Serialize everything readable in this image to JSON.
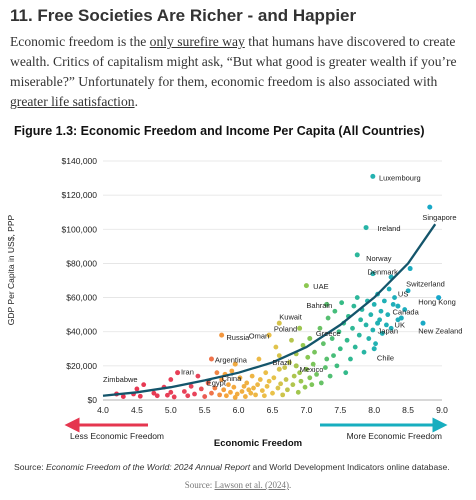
{
  "section_title": "11. Free Societies Are Richer - and Happier",
  "intro": {
    "part1": "Economic freedom is the ",
    "link1": "only surefire way",
    "part2": " that humans have discovered to create wealth. Critics of capitalism might ask, “But what good is greater wealth if you’re miserable?” Unfortunately for them, economic freedom is also associated with ",
    "link2": "greater life satisfaction",
    "part3": "."
  },
  "source": {
    "prefix": "Source: ",
    "title": "Economic Freedom of the World: 2024 Annual Report",
    "suffix": " and World Development Indicators online database."
  },
  "credit": {
    "prefix": "Source: ",
    "link": "Lawson et al. (2024)",
    "suffix": "."
  },
  "chart_data": {
    "type": "scatter",
    "title": "Figure 1.3: Economic Freedom and Income Per Capita (All Countries)",
    "xlabel": "Economic Freedom",
    "ylabel": "GDP Per Capita in US$, PPP",
    "xlim": [
      4.0,
      9.0
    ],
    "ylim": [
      0,
      140000
    ],
    "x_ticks": [
      "4.0",
      "4.5",
      "5.0",
      "5.5",
      "6.0",
      "6.5",
      "7.0",
      "7.5",
      "8.0",
      "8.5",
      "9.0"
    ],
    "y_ticks": [
      "$0",
      "$20,000",
      "$40,000",
      "$60,000",
      "$80,000",
      "$100,000",
      "$120,000",
      "$140,000"
    ],
    "grid": "horizontal",
    "legend": "none",
    "arrow_left_label": "Less Economic Freedom",
    "arrow_right_label": "More Economic Freedom",
    "colors": {
      "left_arrow": "#e5364f",
      "right_arrow": "#17aebf",
      "trend": "#14556b",
      "grid": "#e2e2e2"
    },
    "gradient_stops": [
      {
        "x": 4.0,
        "color": "#e6304e"
      },
      {
        "x": 5.4,
        "color": "#e8445a"
      },
      {
        "x": 5.8,
        "color": "#f5a33c"
      },
      {
        "x": 6.5,
        "color": "#e9c24a"
      },
      {
        "x": 7.0,
        "color": "#8cc751"
      },
      {
        "x": 7.5,
        "color": "#37bb83"
      },
      {
        "x": 8.0,
        "color": "#22b2b2"
      },
      {
        "x": 9.0,
        "color": "#16a6cc"
      }
    ],
    "trend_curve": [
      [
        4.0,
        2500
      ],
      [
        4.5,
        4500
      ],
      [
        5.0,
        7500
      ],
      [
        5.5,
        11500
      ],
      [
        6.0,
        16000
      ],
      [
        6.5,
        22000
      ],
      [
        7.0,
        31000
      ],
      [
        7.5,
        44000
      ],
      [
        8.0,
        60000
      ],
      [
        8.5,
        80000
      ],
      [
        8.9,
        103000
      ]
    ],
    "labeled_points": [
      {
        "name": "Zimbabwe",
        "x": 4.2,
        "y": 3500,
        "lx": 4.0,
        "ly": 12000
      },
      {
        "name": "Iran",
        "x": 5.1,
        "y": 16000,
        "lx": 5.15,
        "ly": 16500
      },
      {
        "name": "Argentina",
        "x": 5.6,
        "y": 24000,
        "lx": 5.65,
        "ly": 23500
      },
      {
        "name": "China",
        "x": 5.95,
        "y": 21000,
        "lx": 5.75,
        "ly": 12500
      },
      {
        "name": "Egypt",
        "x": 5.8,
        "y": 15000,
        "lx": 5.53,
        "ly": 10000
      },
      {
        "name": "Russia",
        "x": 5.75,
        "y": 38000,
        "lx": 5.82,
        "ly": 36500
      },
      {
        "name": "Oman",
        "x": 6.45,
        "y": 38000,
        "lx": 6.15,
        "ly": 37500
      },
      {
        "name": "Brazil",
        "x": 6.6,
        "y": 18000,
        "lx": 6.5,
        "ly": 22000
      },
      {
        "name": "Mexico",
        "x": 6.85,
        "y": 20000,
        "lx": 6.9,
        "ly": 18000
      },
      {
        "name": "Poland",
        "x": 6.9,
        "y": 42000,
        "lx": 6.52,
        "ly": 41500
      },
      {
        "name": "Kuwait",
        "x": 6.6,
        "y": 45000,
        "lx": 6.6,
        "ly": 48500
      },
      {
        "name": "UAE",
        "x": 7.0,
        "y": 67000,
        "lx": 7.1,
        "ly": 66500
      },
      {
        "name": "Bahrain",
        "x": 7.3,
        "y": 56000,
        "lx": 7.0,
        "ly": 55500
      },
      {
        "name": "Greece",
        "x": 7.05,
        "y": 36000,
        "lx": 7.14,
        "ly": 39000
      },
      {
        "name": "Chile",
        "x": 8.0,
        "y": 30000,
        "lx": 8.04,
        "ly": 24500
      },
      {
        "name": "Japan",
        "x": 8.05,
        "y": 45000,
        "lx": 8.05,
        "ly": 40500
      },
      {
        "name": "Luxembourg",
        "x": 7.98,
        "y": 131000,
        "lx": 8.07,
        "ly": 130000
      },
      {
        "name": "Singapore",
        "x": 8.82,
        "y": 113000,
        "lx": 8.71,
        "ly": 107000
      },
      {
        "name": "Ireland",
        "x": 7.88,
        "y": 101000,
        "lx": 8.05,
        "ly": 100500
      },
      {
        "name": "Norway",
        "x": 7.75,
        "y": 85000,
        "lx": 7.88,
        "ly": 83000
      },
      {
        "name": "Denmark",
        "x": 7.98,
        "y": 74000,
        "lx": 7.9,
        "ly": 75000
      },
      {
        "name": "Switzerland",
        "x": 8.53,
        "y": 77000,
        "lx": 8.47,
        "ly": 68000
      },
      {
        "name": "US",
        "x": 8.25,
        "y": 72000,
        "lx": 8.35,
        "ly": 62000
      },
      {
        "name": "Hong Kong",
        "x": 8.95,
        "y": 60000,
        "lx": 8.65,
        "ly": 57500
      },
      {
        "name": "Canada",
        "x": 8.35,
        "y": 55000,
        "lx": 8.27,
        "ly": 51500
      },
      {
        "name": "UK",
        "x": 8.4,
        "y": 48000,
        "lx": 8.3,
        "ly": 44000
      },
      {
        "name": "New Zealand",
        "x": 8.72,
        "y": 45000,
        "lx": 8.65,
        "ly": 40500
      }
    ],
    "other_points": [
      [
        4.3,
        2000
      ],
      [
        4.45,
        3500
      ],
      [
        4.5,
        6500
      ],
      [
        4.55,
        2200
      ],
      [
        4.6,
        9000
      ],
      [
        4.75,
        4000
      ],
      [
        4.8,
        2500
      ],
      [
        4.9,
        7500
      ],
      [
        4.95,
        2800
      ],
      [
        5.0,
        4500
      ],
      [
        5.0,
        12000
      ],
      [
        5.05,
        1800
      ],
      [
        5.2,
        5000
      ],
      [
        5.25,
        2500
      ],
      [
        5.3,
        8000
      ],
      [
        5.35,
        3500
      ],
      [
        5.4,
        14000
      ],
      [
        5.45,
        6500
      ],
      [
        5.5,
        2000
      ],
      [
        5.55,
        10000
      ],
      [
        5.6,
        4000
      ],
      [
        5.65,
        7000
      ],
      [
        5.68,
        16000
      ],
      [
        5.72,
        3000
      ],
      [
        5.75,
        12000
      ],
      [
        5.78,
        6000
      ],
      [
        5.82,
        2500
      ],
      [
        5.85,
        9000
      ],
      [
        5.88,
        4500
      ],
      [
        5.9,
        17000
      ],
      [
        5.93,
        7500
      ],
      [
        5.95,
        1500
      ],
      [
        5.98,
        3500
      ],
      [
        6.02,
        13000
      ],
      [
        6.05,
        5000
      ],
      [
        6.08,
        8000
      ],
      [
        6.1,
        2000
      ],
      [
        6.12,
        10000
      ],
      [
        6.15,
        6000
      ],
      [
        6.18,
        4000
      ],
      [
        6.2,
        14000
      ],
      [
        6.22,
        7000
      ],
      [
        6.25,
        3000
      ],
      [
        6.28,
        9000
      ],
      [
        6.3,
        24000
      ],
      [
        6.32,
        12000
      ],
      [
        6.35,
        5500
      ],
      [
        6.38,
        2500
      ],
      [
        6.4,
        16000
      ],
      [
        6.42,
        8000
      ],
      [
        6.45,
        11000
      ],
      [
        6.5,
        4000
      ],
      [
        6.52,
        13000
      ],
      [
        6.55,
        31000
      ],
      [
        6.58,
        7000
      ],
      [
        6.6,
        26000
      ],
      [
        6.62,
        9500
      ],
      [
        6.65,
        3000
      ],
      [
        6.68,
        19000
      ],
      [
        6.7,
        12000
      ],
      [
        6.72,
        6000
      ],
      [
        6.75,
        22000
      ],
      [
        6.78,
        35000
      ],
      [
        6.8,
        9000
      ],
      [
        6.82,
        14000
      ],
      [
        6.85,
        27000
      ],
      [
        6.88,
        4500
      ],
      [
        6.9,
        16000
      ],
      [
        6.92,
        11000
      ],
      [
        6.95,
        32000
      ],
      [
        6.98,
        7500
      ],
      [
        7.0,
        18000
      ],
      [
        7.02,
        25000
      ],
      [
        7.05,
        13000
      ],
      [
        7.08,
        9000
      ],
      [
        7.1,
        21000
      ],
      [
        7.12,
        28000
      ],
      [
        7.15,
        15000
      ],
      [
        7.2,
        42000
      ],
      [
        7.22,
        10000
      ],
      [
        7.25,
        33000
      ],
      [
        7.28,
        19000
      ],
      [
        7.3,
        24000
      ],
      [
        7.32,
        48000
      ],
      [
        7.35,
        14000
      ],
      [
        7.38,
        36000
      ],
      [
        7.4,
        26000
      ],
      [
        7.42,
        52000
      ],
      [
        7.45,
        20000
      ],
      [
        7.48,
        40000
      ],
      [
        7.5,
        30000
      ],
      [
        7.52,
        57000
      ],
      [
        7.55,
        45000
      ],
      [
        7.58,
        16000
      ],
      [
        7.6,
        35000
      ],
      [
        7.62,
        49000
      ],
      [
        7.65,
        24000
      ],
      [
        7.68,
        42000
      ],
      [
        7.7,
        55000
      ],
      [
        7.72,
        31000
      ],
      [
        7.75,
        60000
      ],
      [
        7.78,
        38000
      ],
      [
        7.8,
        47000
      ],
      [
        7.82,
        53000
      ],
      [
        7.85,
        28000
      ],
      [
        7.88,
        44000
      ],
      [
        7.9,
        58000
      ],
      [
        7.92,
        36000
      ],
      [
        7.95,
        50000
      ],
      [
        7.98,
        41000
      ],
      [
        8.0,
        56000
      ],
      [
        8.02,
        33000
      ],
      [
        8.05,
        62000
      ],
      [
        8.08,
        47000
      ],
      [
        8.1,
        52000
      ],
      [
        8.12,
        39000
      ],
      [
        8.15,
        58000
      ],
      [
        8.18,
        44000
      ],
      [
        8.2,
        50000
      ],
      [
        8.22,
        65000
      ],
      [
        8.25,
        42000
      ],
      [
        8.28,
        56000
      ],
      [
        8.3,
        60000
      ],
      [
        8.35,
        47000
      ],
      [
        8.45,
        53000
      ],
      [
        8.5,
        64000
      ]
    ]
  }
}
